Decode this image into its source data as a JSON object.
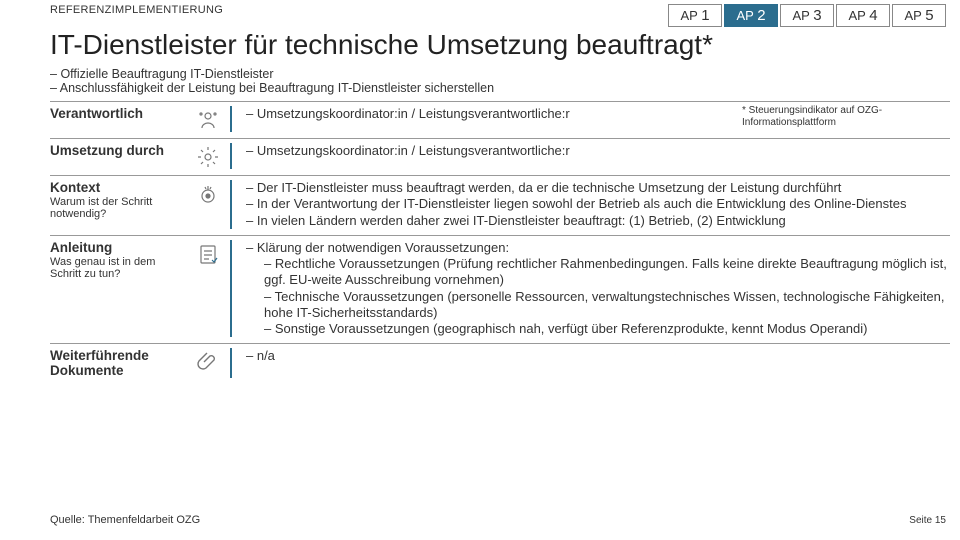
{
  "colors": {
    "accent": "#2b6d8e",
    "text": "#333333",
    "border": "#999999",
    "background": "#ffffff"
  },
  "header": {
    "ref_label": "REFERENZIMPLEMENTIERUNG",
    "tabs": [
      {
        "prefix": "AP",
        "num": "1",
        "active": false
      },
      {
        "prefix": "AP",
        "num": "2",
        "active": true
      },
      {
        "prefix": "AP",
        "num": "3",
        "active": false
      },
      {
        "prefix": "AP",
        "num": "4",
        "active": false
      },
      {
        "prefix": "AP",
        "num": "5",
        "active": false
      }
    ]
  },
  "title": "IT-Dienstleister für technische Umsetzung beauftragt*",
  "intro": [
    "Offizielle Beauftragung IT-Dienstleister",
    "Anschlussfähigkeit der Leistung bei Beauftragung IT-Dienstleister sicherstellen"
  ],
  "footnote": "* Steuerungsindikator auf OZG-Informationsplattform",
  "sections": {
    "verantwortlich": {
      "label": "Verantwortlich",
      "icon": "person-icon",
      "items": [
        "Umsetzungskoordinator:in / Leistungsverantwortliche:r"
      ]
    },
    "umsetzung": {
      "label": "Umsetzung durch",
      "icon": "gear-icon",
      "items": [
        "Umsetzungskoordinator:in / Leistungsverantwortliche:r"
      ]
    },
    "kontext": {
      "label": "Kontext",
      "sub": "Warum ist der Schritt notwendig?",
      "icon": "context-icon",
      "items": [
        "Der IT-Dienstleister muss beauftragt werden, da er die technische Umsetzung der Leistung durchführt",
        "In der Verantwortung der IT-Dienstleister liegen sowohl der Betrieb als auch die Entwicklung des Online-Dienstes",
        "In vielen Ländern werden daher zwei IT-Dienstleister beauftragt: (1) Betrieb, (2) Entwicklung"
      ]
    },
    "anleitung": {
      "label": "Anleitung",
      "sub": "Was genau ist in dem Schritt zu tun?",
      "icon": "checklist-icon",
      "items": [
        {
          "text": "Klärung der notwendigen Voraussetzungen:",
          "sub": false
        },
        {
          "text": "Rechtliche Voraussetzungen (Prüfung rechtlicher Rahmenbedingungen. Falls keine direkte Beauftragung möglich ist, ggf. EU-weite Ausschreibung vornehmen)",
          "sub": true
        },
        {
          "text": "Technische Voraussetzungen (personelle Ressourcen, verwaltungstechnisches Wissen, technologische Fähigkeiten, hohe IT-Sicherheitsstandards)",
          "sub": true
        },
        {
          "text": "Sonstige Voraussetzungen (geographisch nah, verfügt über Referenzprodukte, kennt Modus Operandi)",
          "sub": true
        }
      ]
    },
    "dokumente": {
      "label": "Weiterführende Dokumente",
      "icon": "clip-icon",
      "items": [
        "n/a"
      ]
    }
  },
  "source": "Quelle: Themenfeldarbeit OZG",
  "page": "Seite 15"
}
